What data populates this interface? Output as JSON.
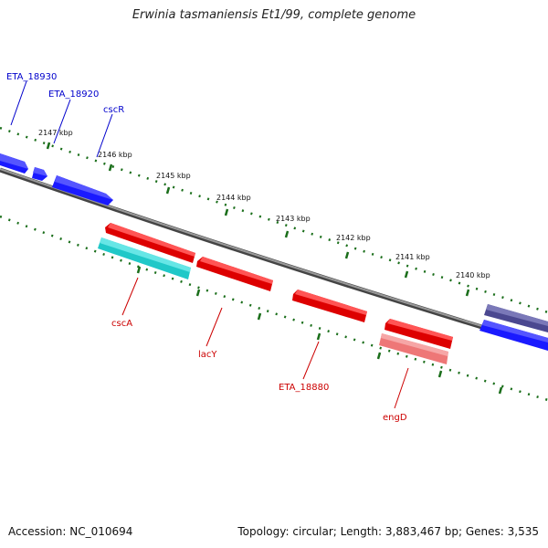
{
  "title": "Erwinia tasmaniensis Et1/99, complete genome",
  "footer": {
    "accession": "Accession: NC_010694",
    "summary": "Topology: circular; Length: 3,883,467 bp; Genes: 3,535"
  },
  "ticks": [
    "2147 kbp",
    "2146 kbp",
    "2145 kbp",
    "2144 kbp",
    "2143 kbp",
    "2142 kbp",
    "2141 kbp",
    "2140 kbp"
  ],
  "genes": [
    {
      "name": "ETA_18930",
      "strand": "forward",
      "color": "#0000cc"
    },
    {
      "name": "ETA_18920",
      "strand": "forward",
      "color": "#0000cc"
    },
    {
      "name": "cscR",
      "strand": "forward",
      "color": "#0000cc"
    },
    {
      "name": "cscA",
      "strand": "reverse",
      "color": "#cc0000"
    },
    {
      "name": "lacY",
      "strand": "reverse",
      "color": "#cc0000"
    },
    {
      "name": "ETA_18880",
      "strand": "reverse",
      "color": "#cc0000"
    },
    {
      "name": "engD",
      "strand": "reverse",
      "color": "#cc0000"
    }
  ],
  "colors": {
    "forward_gene": "#1a1aff",
    "reverse_gene": "#ee0000",
    "cds_cyan": "#20c8c8",
    "cds_pink": "#ee7777",
    "cds_navy": "#4b4890",
    "ruler": "#1a6e1a",
    "backbone": "#808080"
  }
}
